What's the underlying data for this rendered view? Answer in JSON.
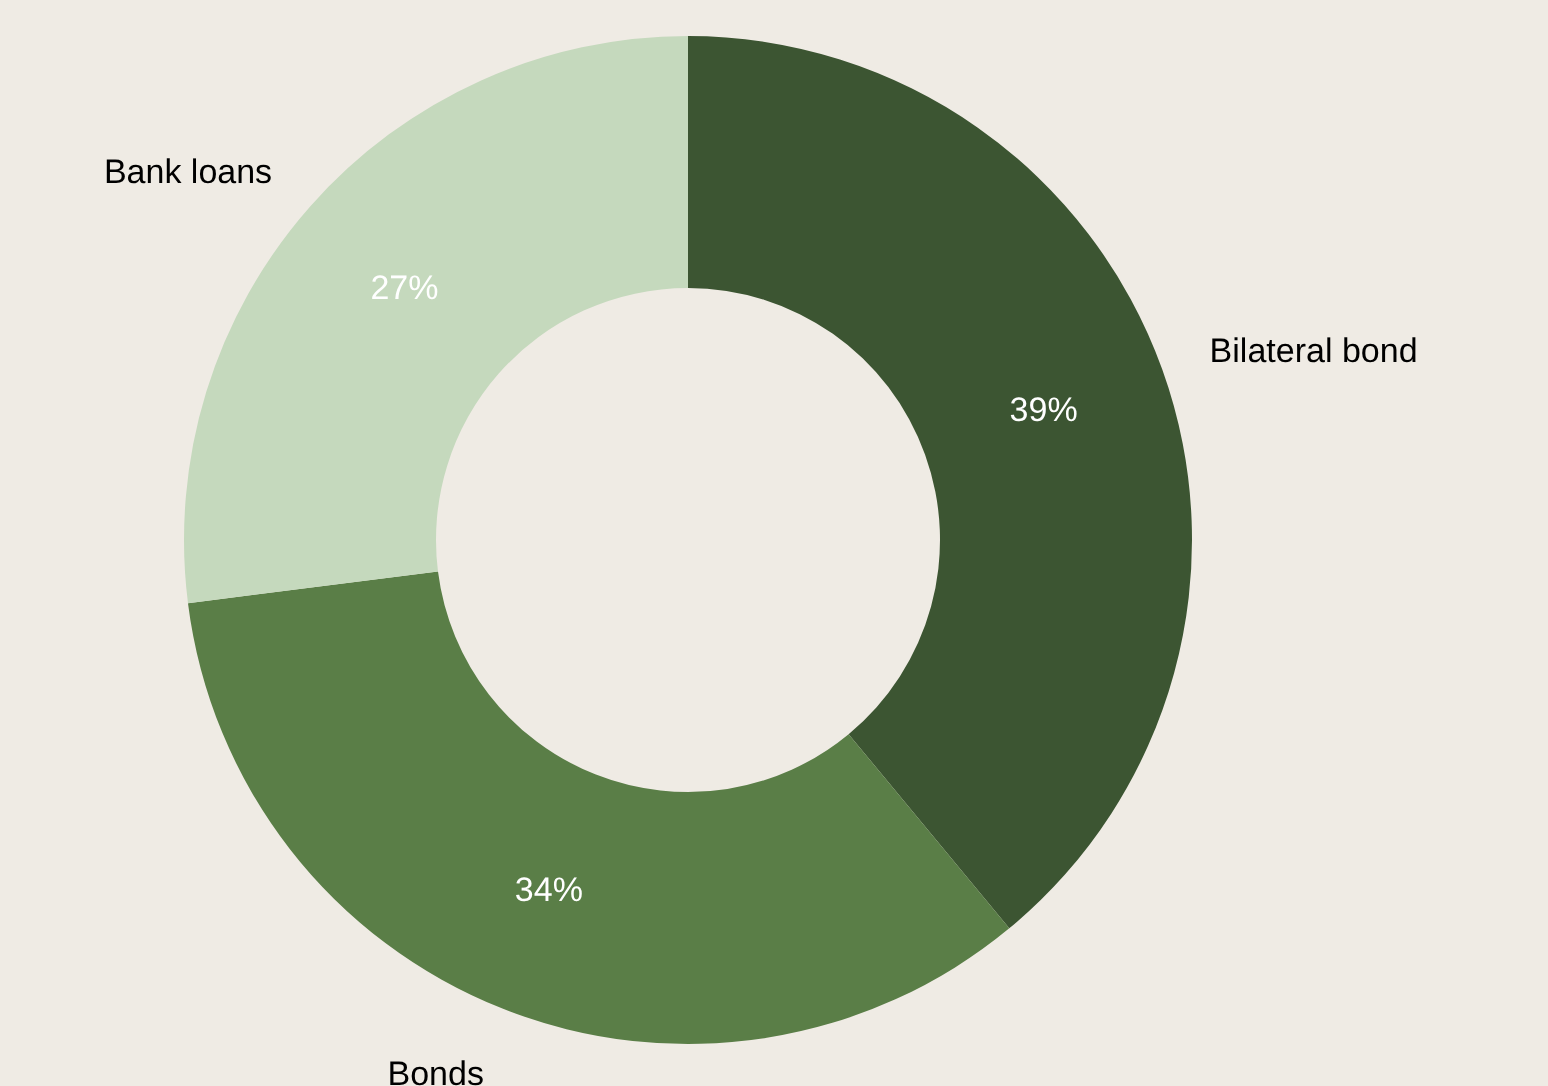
{
  "chart_data": {
    "type": "donut",
    "categories": [
      "Bilateral bond",
      "Bonds",
      "Bank loans"
    ],
    "values": [
      39,
      34,
      27
    ],
    "colors": [
      "#3c5532",
      "#5a7e47",
      "#c5d9bd"
    ],
    "value_labels": [
      "39%",
      "34%",
      "27%"
    ],
    "legend": false
  }
}
